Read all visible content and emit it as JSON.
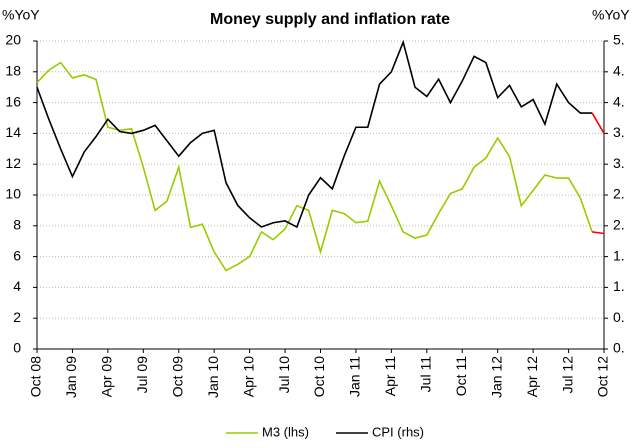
{
  "chart_data": {
    "type": "line",
    "title": "Money supply and inflation rate",
    "y_label": "%YoY",
    "y2_label": "%YoY",
    "categories": [
      "Oct 08",
      null,
      null,
      "Jan 09",
      null,
      null,
      "Apr 09",
      null,
      null,
      "Jul 09",
      null,
      null,
      "Oct 09",
      null,
      null,
      "Jan 10",
      null,
      null,
      "Apr 10",
      null,
      null,
      "Jul 10",
      null,
      null,
      "Oct 10",
      null,
      null,
      "Jan 11",
      null,
      null,
      "Apr 11",
      null,
      null,
      "Jul 11",
      null,
      null,
      "Oct 11",
      null,
      null,
      "Jan 12",
      null,
      null,
      "Apr 12",
      null,
      null,
      "Jul 12",
      null,
      null,
      "Oct 12"
    ],
    "series": [
      {
        "name": "M3 (lhs)",
        "color": "#99cc00",
        "last_segment_color": "#ff0000",
        "values": [
          17.3,
          18.1,
          18.6,
          17.6,
          17.8,
          17.5,
          14.4,
          14.2,
          14.3,
          11.8,
          9.0,
          9.6,
          11.8,
          7.9,
          8.1,
          6.3,
          5.1,
          5.5,
          6.0,
          7.6,
          7.1,
          7.8,
          9.3,
          9.0,
          6.3,
          9.0,
          8.8,
          8.2,
          8.3,
          10.9,
          9.3,
          7.6,
          7.2,
          7.4,
          8.8,
          10.1,
          10.4,
          11.8,
          12.4,
          13.7,
          12.5,
          9.3,
          10.3,
          11.3,
          11.1,
          11.1,
          9.8,
          7.6,
          7.5
        ]
      },
      {
        "name": "CPI (rhs)",
        "color": "#000000",
        "last_segment_color": "#ff0000",
        "axis": "y2",
        "values": [
          4.25,
          3.73,
          3.25,
          2.8,
          3.2,
          3.45,
          3.73,
          3.53,
          3.5,
          3.55,
          3.63,
          3.38,
          3.13,
          3.35,
          3.5,
          3.55,
          2.7,
          2.33,
          2.13,
          1.98,
          2.05,
          2.08,
          1.98,
          2.5,
          2.78,
          2.6,
          3.13,
          3.6,
          3.6,
          4.3,
          4.5,
          4.98,
          4.25,
          4.1,
          4.38,
          4.0,
          4.35,
          4.75,
          4.65,
          4.08,
          4.28,
          3.93,
          4.05,
          3.65,
          4.3,
          4.0,
          3.83,
          3.83,
          3.5
        ]
      }
    ],
    "ylim": [
      0,
      20
    ],
    "yticks": [
      0,
      2,
      4,
      6,
      8,
      10,
      12,
      14,
      16,
      18,
      20
    ],
    "y2lim": [
      0,
      5
    ],
    "y2ticks": [
      {
        "value": 0,
        "label": "0."
      },
      {
        "value": 0.5,
        "label": "0."
      },
      {
        "value": 1,
        "label": "1."
      },
      {
        "value": 1.5,
        "label": "1."
      },
      {
        "value": 2,
        "label": "2."
      },
      {
        "value": 2.5,
        "label": "2."
      },
      {
        "value": 3,
        "label": "3."
      },
      {
        "value": 3.5,
        "label": "3."
      },
      {
        "value": 4,
        "label": "4."
      },
      {
        "value": 4.5,
        "label": "4."
      },
      {
        "value": 5,
        "label": "5."
      }
    ],
    "grid": true,
    "legend": "bottom"
  }
}
